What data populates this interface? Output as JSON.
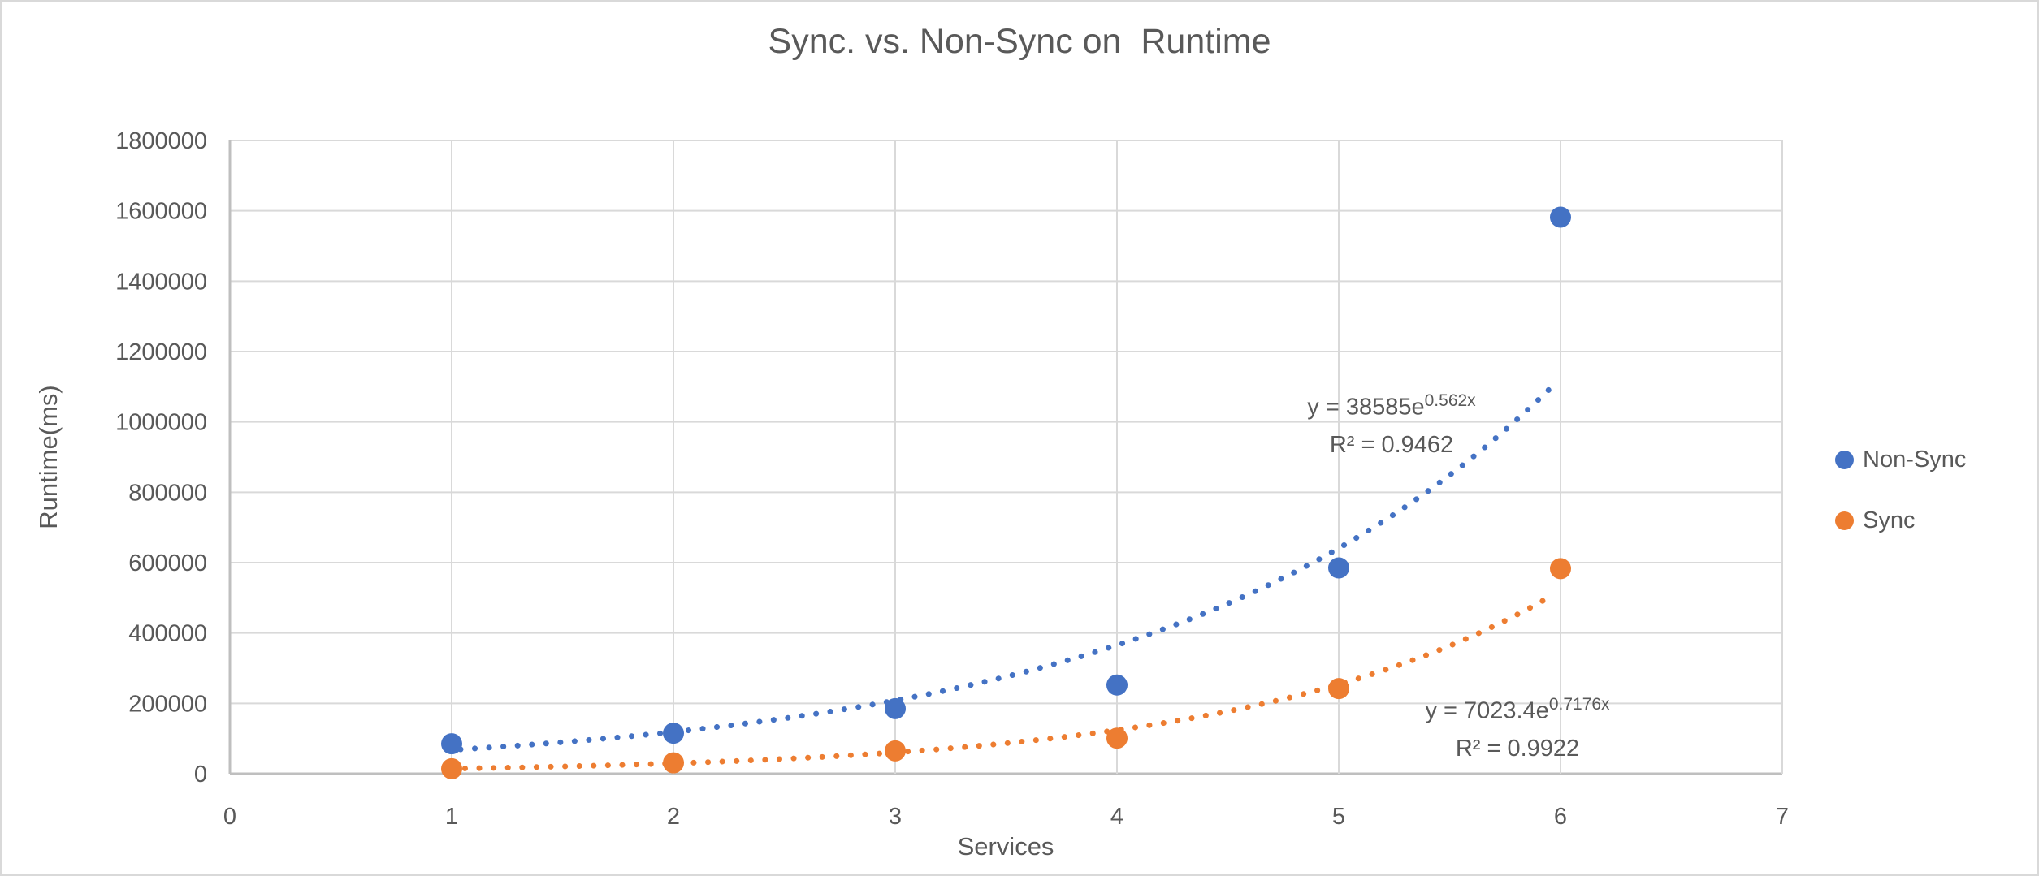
{
  "chart": {
    "title": "Sync. vs. Non-Sync on  Runtime",
    "x_axis_title": "Services",
    "y_axis_title": "Runtime(ms)"
  },
  "chart_data": {
    "type": "scatter",
    "title": "Sync. vs. Non-Sync on  Runtime",
    "xlabel": "Services",
    "ylabel": "Runtime(ms)",
    "x": [
      1,
      2,
      3,
      4,
      5,
      6
    ],
    "series": [
      {
        "name": "Non-Sync",
        "color": "#4472C4",
        "values": [
          85000,
          115000,
          185000,
          252000,
          585000,
          1582000
        ],
        "trendline": {
          "type": "exponential",
          "a": 38585,
          "b": 0.562,
          "x_start": 1.04,
          "x_end": 5.96,
          "label_base": "y = 38585e",
          "label_exp": "0.562x",
          "r2_label": "R² = 0.9462"
        }
      },
      {
        "name": "Sync",
        "color": "#ED7D31",
        "values": [
          14000,
          31000,
          65000,
          101000,
          242000,
          583000
        ],
        "trendline": {
          "type": "exponential",
          "a": 7023.4,
          "b": 0.7176,
          "x_start": 1.06,
          "x_end": 5.96,
          "label_base": "y = 7023.4e",
          "label_exp": "0.7176x",
          "r2_label": "R² = 0.9922"
        }
      }
    ],
    "xlim": [
      0,
      7
    ],
    "ylim": [
      0,
      1800000
    ],
    "x_ticks": [
      0,
      1,
      2,
      3,
      4,
      5,
      6,
      7
    ],
    "y_ticks": [
      0,
      200000,
      400000,
      600000,
      800000,
      1000000,
      1200000,
      1400000,
      1600000,
      1800000
    ],
    "grid": true,
    "legend_position": "right",
    "marker": "circle"
  },
  "colors": {
    "text": "#595959",
    "gridline": "#d9d9d9",
    "axis_line": "#bfbfbf",
    "background": "#ffffff",
    "non_sync": "#4472C4",
    "sync": "#ED7D31"
  }
}
